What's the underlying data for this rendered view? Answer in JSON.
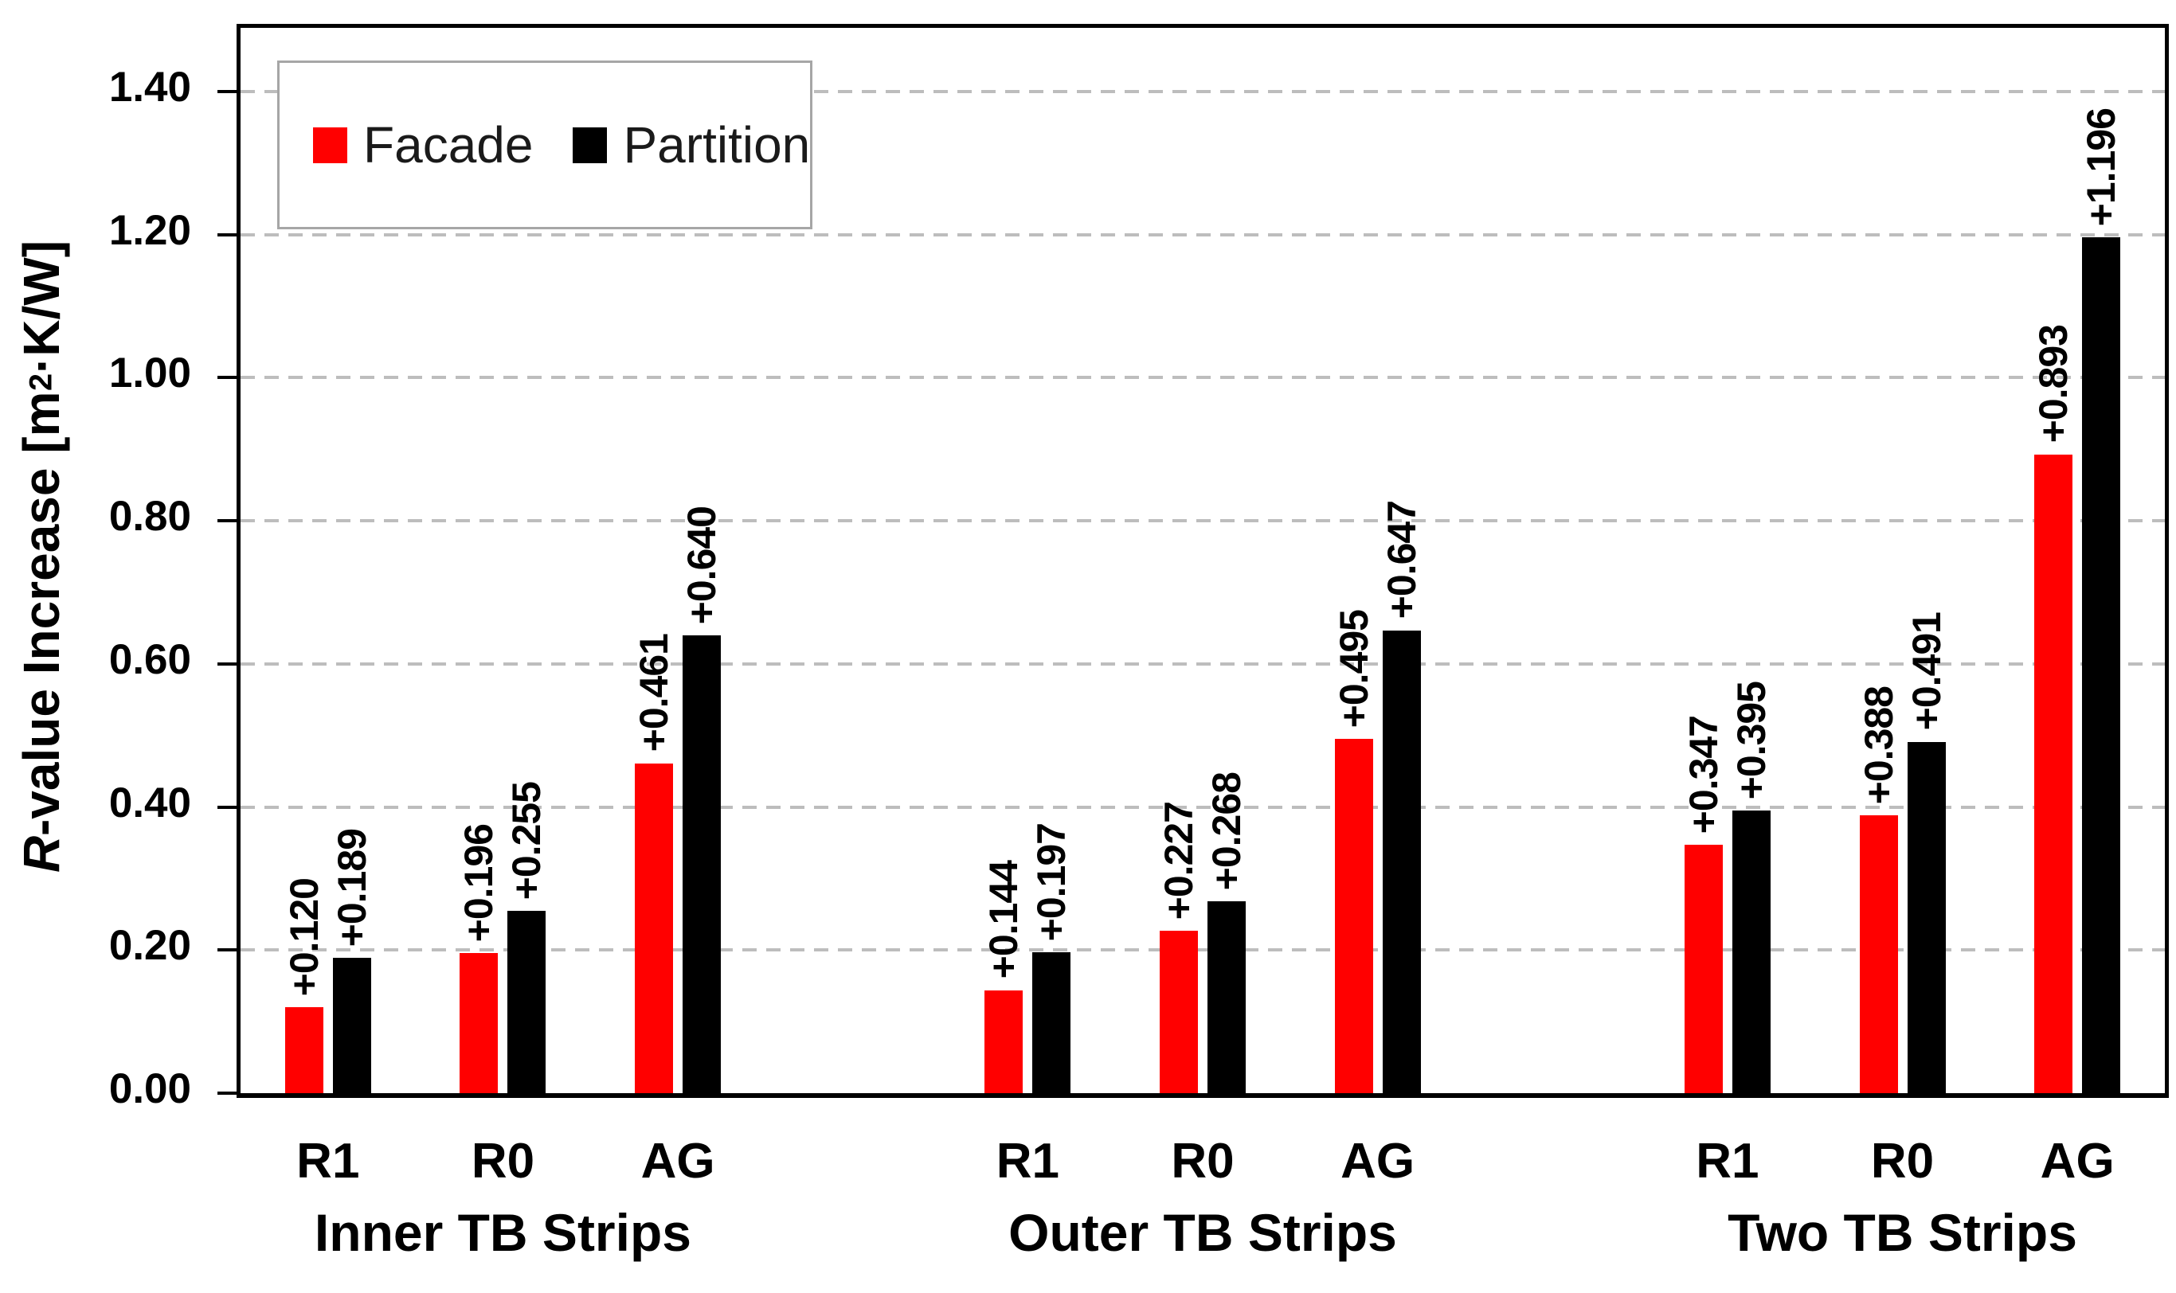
{
  "chart_data": {
    "type": "bar",
    "title": "",
    "ylabel": "R-value Increase [m²·K/W]",
    "ylabel_parts": {
      "italic": "R",
      "mid": "-value Increase [m",
      "sup": "2",
      "tail": "·K/W]"
    },
    "y_axis": {
      "min": 0.0,
      "max": 1.4,
      "step": 0.2,
      "tick_labels": [
        "0.00",
        "0.20",
        "0.40",
        "0.60",
        "0.80",
        "1.00",
        "1.20",
        "1.40"
      ],
      "plot_top_value": 1.4889,
      "grid": true,
      "grid_style": "dashed"
    },
    "legend": {
      "position": "top-left-inside"
    },
    "series": [
      {
        "name": "Facade",
        "key": "facade",
        "color": "#FF0000"
      },
      {
        "name": "Partition",
        "key": "partition",
        "color": "#000000"
      }
    ],
    "groups": [
      {
        "label": "Inner TB Strips",
        "categories": [
          "R1",
          "R0",
          "AG"
        ],
        "facade": {
          "values": [
            0.12,
            0.196,
            0.461
          ],
          "labels": [
            "+0.120",
            "+0.196",
            "+0.461"
          ]
        },
        "partition": {
          "values": [
            0.189,
            0.255,
            0.64
          ],
          "labels": [
            "+0.189",
            "+0.255",
            "+0.640"
          ]
        }
      },
      {
        "label": "Outer TB Strips",
        "categories": [
          "R1",
          "R0",
          "AG"
        ],
        "facade": {
          "values": [
            0.144,
            0.227,
            0.495
          ],
          "labels": [
            "+0.144",
            "+0.227",
            "+0.495"
          ]
        },
        "partition": {
          "values": [
            0.197,
            0.268,
            0.647
          ],
          "labels": [
            "+0.197",
            "+0.268",
            "+0.647"
          ]
        }
      },
      {
        "label": "Two TB Strips",
        "categories": [
          "R1",
          "R0",
          "AG"
        ],
        "facade": {
          "values": [
            0.347,
            0.388,
            0.893
          ],
          "labels": [
            "+0.347",
            "+0.388",
            "+0.893"
          ]
        },
        "partition": {
          "values": [
            0.395,
            0.491,
            1.196
          ],
          "labels": [
            "+0.395",
            "+0.491",
            "+1.196"
          ]
        }
      }
    ],
    "colors": {
      "facade": "#FF0000",
      "partition": "#000000",
      "gridline": "#BDBDBD",
      "axis": "#000000",
      "legend_border": "#A6A6A6"
    }
  }
}
